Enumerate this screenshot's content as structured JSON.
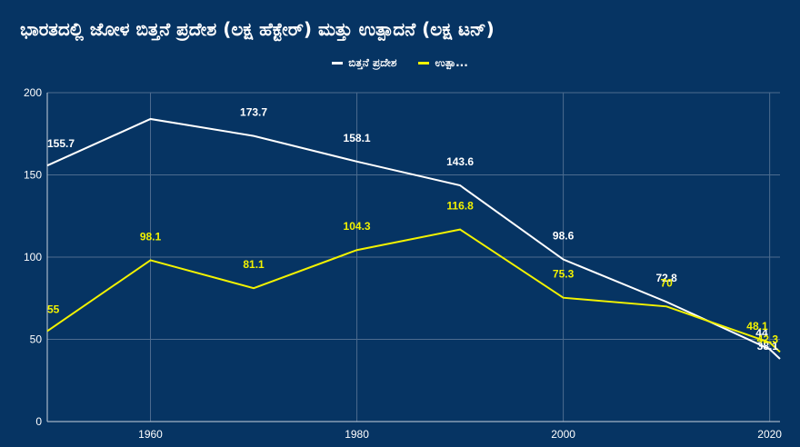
{
  "chart_data": {
    "type": "line",
    "title": "ಭಾರತದಲ್ಲಿ ಜೋಳ ಬಿತ್ತನೆ ಪ್ರದೇಶ (ಲಕ್ಷ ಹೆಕ್ಟೇರ್) ಮತ್ತು ಉತ್ಪಾದನೆ (ಲಕ್ಷ ಟನ್)",
    "x": [
      1950,
      1960,
      1970,
      1980,
      1990,
      2000,
      2010,
      2020,
      2021
    ],
    "x_ticks": [
      "1960",
      "1980",
      "2000",
      "2020"
    ],
    "x_tick_values": [
      1960,
      1980,
      2000,
      2020
    ],
    "y_ticks": [
      "0",
      "50",
      "100",
      "150",
      "200"
    ],
    "y_tick_values": [
      0,
      50,
      100,
      150,
      200
    ],
    "xlim": [
      1950,
      2021
    ],
    "ylim": [
      0,
      200
    ],
    "grid": true,
    "legend_position": "top-center",
    "series": [
      {
        "name": "ಬಿತ್ತನೆ ಪ್ರದೇಶ",
        "color": "#ffffff",
        "values": [
          155.7,
          184.0,
          173.7,
          158.1,
          143.6,
          98.6,
          72.8,
          44.0,
          38.1
        ],
        "labels": [
          "155.7",
          "",
          "173.7",
          "158.1",
          "143.6",
          "98.6",
          "72.8",
          "44",
          "38.1"
        ]
      },
      {
        "name": "ಉತ್ಪಾ...",
        "color": "#f2f200",
        "values": [
          55,
          98.1,
          81.1,
          104.3,
          116.8,
          75.3,
          70,
          48.1,
          42.3
        ],
        "labels": [
          "55",
          "98.1",
          "81.1",
          "104.3",
          "116.8",
          "75.3",
          "70",
          "48.1",
          "42.3"
        ]
      }
    ]
  },
  "colors": {
    "background": "#063463",
    "grid": "#4d6c8f",
    "axis": "#c8d2de"
  }
}
